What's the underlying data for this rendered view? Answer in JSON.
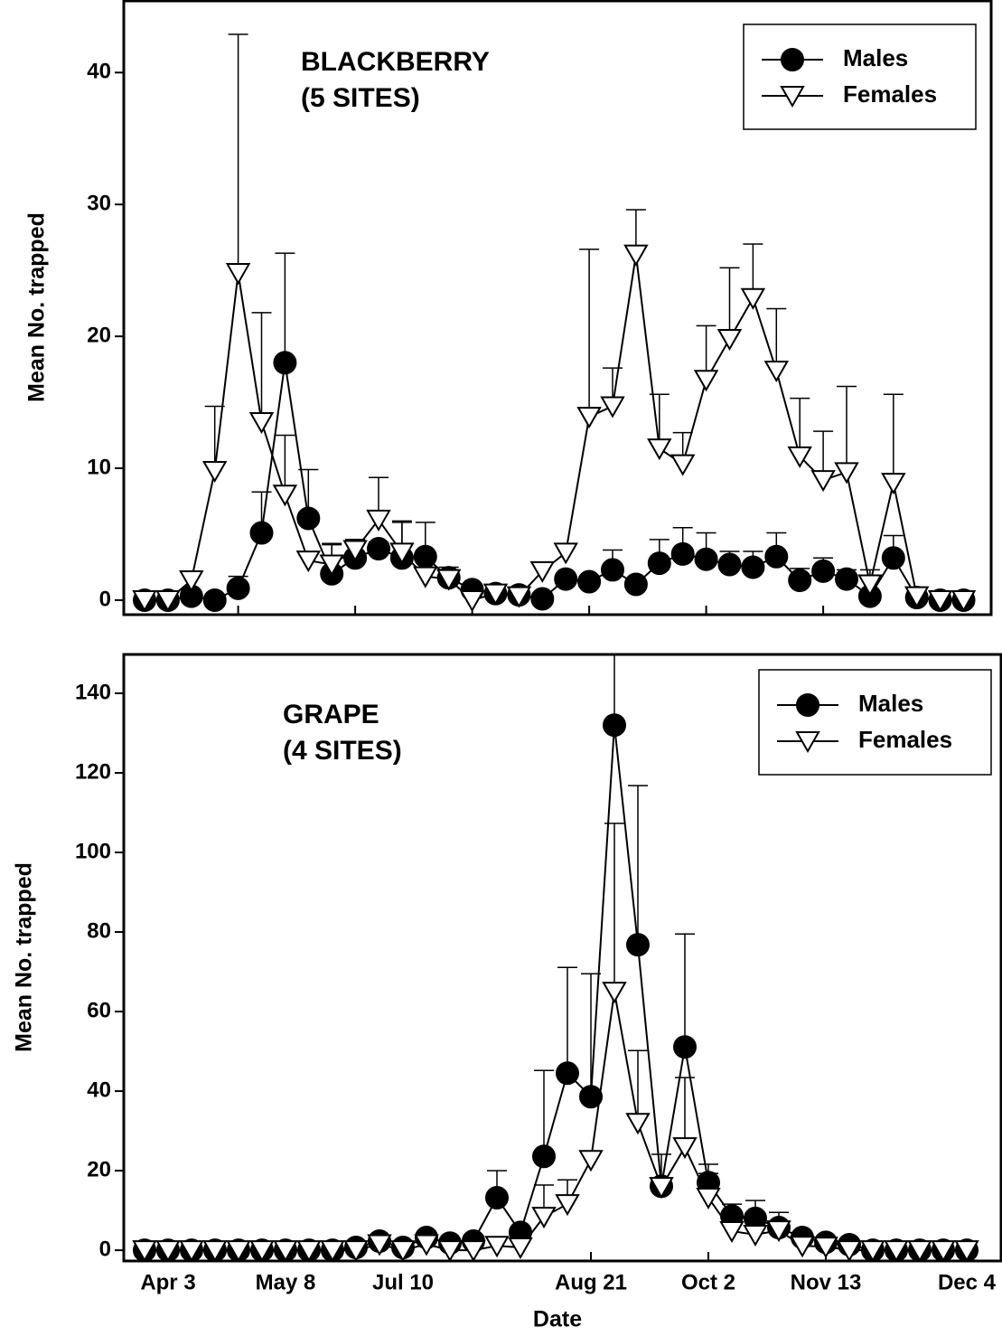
{
  "chart_data": [
    {
      "type": "line",
      "title_lines": [
        "BLACKBERRY",
        "(5 SITES)"
      ],
      "y_label": "Mean No. trapped",
      "categories": [
        null,
        null,
        null,
        null,
        null,
        null,
        null,
        null,
        null,
        null,
        null,
        null,
        null,
        null,
        null,
        null,
        null,
        null,
        null,
        null,
        null,
        null,
        null,
        null,
        null,
        null,
        null,
        null,
        null,
        null,
        null,
        null,
        null,
        null,
        null,
        null
      ],
      "xticks": [
        4,
        9,
        14,
        19,
        24,
        29
      ],
      "ylim": [
        -1.1,
        45.5
      ],
      "yticks": [
        0,
        10,
        20,
        30,
        40
      ],
      "legend": "upper right",
      "series": [
        {
          "name": "Males",
          "color": "#000000",
          "marker": "circle",
          "values": [
            0,
            0,
            0.3,
            0,
            0.9,
            5.1,
            18,
            6.2,
            2.0,
            3.2,
            3.9,
            3.2,
            3.3,
            1.7,
            0.8,
            0.5,
            0.4,
            0.1,
            1.6,
            1.4,
            2.3,
            1.2,
            2.8,
            3.5,
            3.1,
            2.7,
            2.5,
            3.3,
            1.5,
            2.2,
            1.6,
            0.3,
            3.2,
            0.2,
            0,
            0
          ],
          "errors": [
            0,
            0,
            0,
            0,
            0.9,
            3.1,
            8.3,
            3.7,
            2.3,
            1.4,
            0.5,
            2.8,
            2.6,
            0.8,
            0,
            0,
            0,
            0,
            0,
            0,
            1.5,
            0,
            1.8,
            2.0,
            2.0,
            1.0,
            1.2,
            1.8,
            0.9,
            1.0,
            0.7,
            0,
            1.7,
            0,
            0,
            0
          ]
        },
        {
          "name": "Females",
          "color": "#ffffff",
          "marker": "triangle",
          "values": [
            0,
            0,
            1.5,
            9.8,
            24.8,
            13.5,
            8.0,
            3.0,
            2.7,
            3.8,
            6.1,
            3.6,
            1.8,
            1.6,
            0,
            0.5,
            0.3,
            2.2,
            3.6,
            13.9,
            14.7,
            26.2,
            11.5,
            10.3,
            16.7,
            19.8,
            22.9,
            17.4,
            10.9,
            9.1,
            9.7,
            1.2,
            8.9,
            0.3,
            0,
            0
          ],
          "errors": [
            0,
            0,
            0,
            4.9,
            18.1,
            8.3,
            4.5,
            0,
            1.5,
            0.8,
            3.2,
            2.3,
            0,
            0,
            0,
            0,
            0,
            0,
            0,
            12.7,
            2.9,
            3.4,
            4.1,
            2.4,
            4.1,
            5.4,
            4.1,
            4.7,
            4.4,
            3.7,
            6.5,
            1.1,
            6.7,
            0,
            0,
            0
          ]
        }
      ]
    },
    {
      "type": "line",
      "title_lines": [
        "GRAPE",
        "(4 SITES)"
      ],
      "y_label": "Mean No. trapped",
      "x_label": "Date",
      "categories": [
        null,
        "Apr 3",
        null,
        null,
        null,
        null,
        "May 8",
        null,
        null,
        null,
        null,
        "Jul 10",
        null,
        null,
        null,
        null,
        null,
        null,
        null,
        "Aug 21",
        null,
        null,
        null,
        null,
        "Oct 2",
        null,
        null,
        null,
        null,
        "Nov 13",
        null,
        null,
        null,
        null,
        null,
        "Dec 4"
      ],
      "xticks": [
        4,
        9,
        14,
        19,
        24,
        29
      ],
      "ylim": [
        -2.7,
        150
      ],
      "yticks": [
        0,
        20,
        40,
        60,
        80,
        100,
        120,
        140
      ],
      "legend": "upper right",
      "series": [
        {
          "name": "Males",
          "color": "#000000",
          "marker": "circle",
          "values": [
            0,
            0,
            0,
            0,
            0,
            0,
            0,
            0,
            0,
            0.7,
            2.3,
            0.7,
            3.2,
            1.8,
            2.3,
            13.2,
            4.5,
            23.6,
            44.5,
            38.6,
            132,
            76.8,
            16.1,
            51.1,
            17.0,
            8.6,
            8.0,
            5.7,
            3.2,
            2.0,
            1.4,
            0,
            0,
            0,
            0,
            0
          ],
          "errors": [
            0,
            0,
            0,
            0,
            0,
            0,
            0,
            0,
            0,
            0,
            0,
            0,
            0,
            0,
            0,
            6.8,
            0,
            21.6,
            26.6,
            30.9,
            20,
            40,
            0,
            28.4,
            4.6,
            3,
            4.5,
            0,
            0,
            0,
            0,
            0,
            0,
            0,
            0,
            0
          ]
        },
        {
          "name": "Females",
          "color": "#ffffff",
          "marker": "triangle",
          "values": [
            0,
            0,
            0,
            0,
            0,
            0,
            0,
            0,
            0,
            0,
            1.5,
            0,
            1.5,
            0,
            0,
            1.1,
            0.7,
            8.4,
            11.6,
            22.7,
            65,
            32,
            15.9,
            25.9,
            13.2,
            4.8,
            3.9,
            5.0,
            1.1,
            0.9,
            0,
            0,
            0,
            0,
            0,
            0
          ],
          "errors": [
            0,
            0,
            0,
            0,
            0,
            0,
            0,
            0,
            0,
            0,
            0,
            0,
            0,
            0,
            0,
            0,
            0,
            8,
            6.1,
            0,
            42.3,
            18.2,
            8.2,
            17.5,
            6.1,
            2,
            0,
            4.5,
            0,
            0,
            0,
            0,
            0,
            0,
            0,
            0
          ]
        }
      ]
    }
  ]
}
